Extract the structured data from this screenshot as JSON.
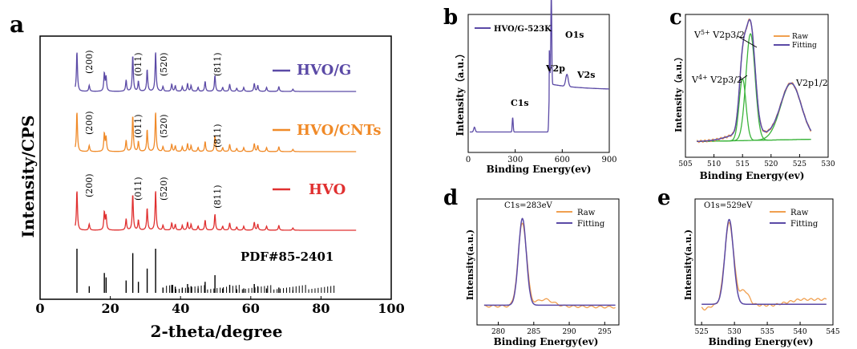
{
  "chart_data": [
    {
      "panel": "a",
      "type": "line",
      "xlabel": "2-theta/degree",
      "ylabel": "Intensity/CPS",
      "xlim": [
        0,
        100
      ],
      "xticks": [
        "0",
        "20",
        "40",
        "60",
        "80",
        "100"
      ],
      "peaks": [
        10.5,
        14.0,
        18.3,
        18.8,
        24.5,
        26.4,
        28.0,
        30.5,
        32.9,
        35.0,
        37.5,
        38.5,
        40.5,
        42.0,
        43.0,
        45.0,
        47.0,
        49.8,
        52.0,
        54.0,
        56.0,
        58.0,
        61.0,
        62.0,
        64.5,
        68.0,
        72.0
      ],
      "series": [
        {
          "name": "HVO/G",
          "color": "#5b4aa6",
          "miller": [
            "(200)",
            "(011)",
            "(520)",
            "(811)"
          ]
        },
        {
          "name": "HVO/CNTs",
          "color": "#f08a28",
          "miller": [
            "(200)",
            "(011)",
            "(520)",
            "(811)"
          ]
        },
        {
          "name": "HVO",
          "color": "#e03030",
          "miller": [
            "(200)",
            "(011)",
            "(520)",
            "(811)"
          ]
        }
      ],
      "reference": {
        "label": "PDF#85-2401",
        "color": "#000000"
      }
    },
    {
      "panel": "b",
      "type": "line",
      "xlabel": "Binding Energy(ev)",
      "ylabel": "Intensity（a.u.）",
      "xlim": [
        0,
        900
      ],
      "xticks": [
        "0",
        "300",
        "600",
        "900"
      ],
      "legend": "HVO/G-523K",
      "color": "#5b4aa6",
      "annotations": [
        {
          "label": "C1s",
          "x": 284
        },
        {
          "label": "V2p",
          "x": 517
        },
        {
          "label": "O1s",
          "x": 530
        },
        {
          "label": "V2s",
          "x": 630
        }
      ]
    },
    {
      "panel": "c",
      "type": "line",
      "xlabel": "Binding Energy(ev)",
      "ylabel": "Intensity（a.u.）",
      "xlim": [
        505,
        530
      ],
      "xticks": [
        "505",
        "510",
        "515",
        "520",
        "525",
        "530"
      ],
      "legend": [
        "Raw",
        "Fitting"
      ],
      "annotations": [
        {
          "label": "V5+ V2p3/2",
          "x": 516.4
        },
        {
          "label": "V4+ V2p3/2",
          "x": 515.0
        },
        {
          "label": "V2p1/2",
          "x": 523.5
        }
      ]
    },
    {
      "panel": "d",
      "type": "line",
      "xlabel": "Binding Energy(ev)",
      "ylabel": "Intensity(a.u.)",
      "xlim": [
        277,
        297
      ],
      "xticks": [
        "280",
        "285",
        "290",
        "295"
      ],
      "legend": [
        "Raw",
        "Fitting"
      ],
      "annotation": "C1s=283eV",
      "peak_center": 283.4
    },
    {
      "panel": "e",
      "type": "line",
      "xlabel": "Binding Energy(ev)",
      "ylabel": "Intensity(a.u.)",
      "xlim": [
        524,
        545
      ],
      "xticks": [
        "525",
        "530",
        "535",
        "540",
        "545"
      ],
      "legend": [
        "Raw",
        "Fitting"
      ],
      "annotation": "O1s=529eV",
      "peak_center": 529.2
    }
  ],
  "colors": {
    "raw": "#f0a050",
    "fitting": "#5b4aa6",
    "component": "#3cb43c"
  }
}
